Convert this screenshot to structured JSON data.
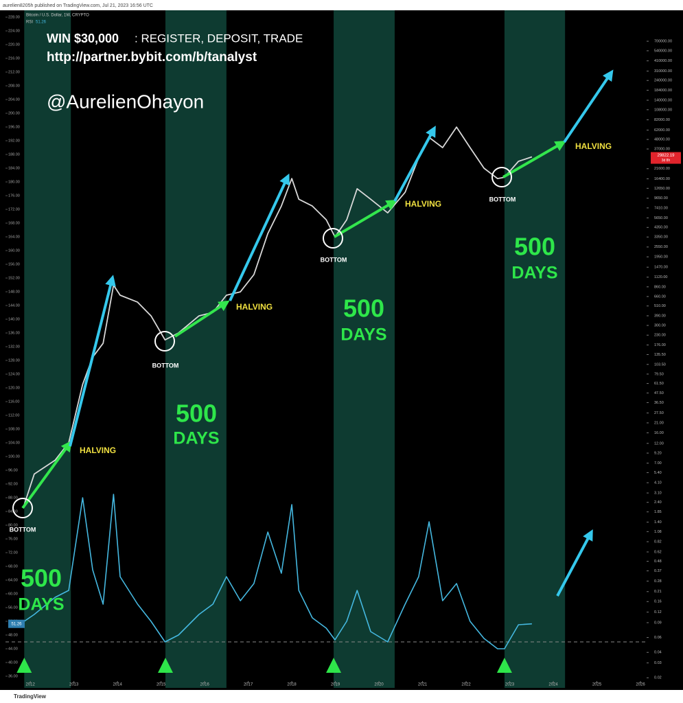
{
  "chart_data": {
    "type": "line",
    "header": "aurelien8205h published on TradingView.com, Jul 21, 2023 16:56 UTC",
    "symbol": "Bitcoin / U.S. Dollar, 1W, CRYPTO",
    "indicator": "RSI",
    "countdown": "3d 8h",
    "footer": "TradingView",
    "promo": {
      "win": "WIN $30,000",
      "action": ": REGISTER, DEPOSIT, TRADE",
      "url": "http://partner.bybit.com/b/tanalyst",
      "handle": "@AurelienOhayon"
    },
    "annotations": {
      "bottom": "BOTTOM",
      "halving": "HALVING",
      "days_number": "500",
      "days_label": "DAYS"
    },
    "x": [
      2011.86,
      2012.09,
      2012.57,
      2012.88,
      2013.2,
      2013.43,
      2013.67,
      2013.91,
      2014.06,
      2014.46,
      2014.77,
      2015.09,
      2015.4,
      2015.87,
      2016.19,
      2016.5,
      2016.82,
      2017.13,
      2017.45,
      2017.76,
      2018.0,
      2018.16,
      2018.47,
      2018.79,
      2018.99,
      2019.26,
      2019.5,
      2019.81,
      2020.2,
      2020.6,
      2020.91,
      2021.15,
      2021.46,
      2021.78,
      2022.09,
      2022.41,
      2022.72,
      2022.88,
      2023.2,
      2023.51
    ],
    "series": [
      {
        "name": "Bitcoin / U.S. Dollar",
        "color": "#d9d9d9",
        "axis": "y2",
        "values": [
          2.25,
          5.2,
          7.6,
          12.2,
          60,
          126,
          184,
          900,
          684,
          566,
          389,
          202,
          244,
          389,
          428,
          684,
          750,
          1200,
          3690,
          7800,
          16500,
          9400,
          7800,
          5360,
          3360,
          5360,
          12500,
          9400,
          6470,
          11350,
          29000,
          50800,
          38400,
          67300,
          38400,
          21900,
          16500,
          17100,
          26400,
          29822.19
        ]
      },
      {
        "name": "RSI",
        "color": "#45b8e0",
        "values": [
          52,
          54,
          59,
          61,
          88,
          67,
          57,
          89,
          65,
          57,
          52,
          46,
          48,
          54,
          57,
          65,
          58,
          63,
          78,
          66,
          86,
          61,
          53,
          50,
          46.6,
          52,
          61,
          49,
          46,
          57,
          65,
          81,
          58,
          63,
          52,
          47,
          44,
          44,
          51,
          51.26
        ]
      }
    ],
    "level": 46,
    "bands": [
      [
        2011.86,
        2012.93
      ],
      [
        2015.1,
        2016.5
      ],
      [
        2018.96,
        2020.36
      ],
      [
        2022.88,
        2024.27
      ]
    ],
    "band_color": "#0e3b31",
    "xlim": [
      2011.43,
      2026.11
    ],
    "xticks": [
      2012,
      2013,
      2014,
      2015,
      2016,
      2017,
      2018,
      2019,
      2020,
      2021,
      2022,
      2023,
      2024,
      2025,
      2026
    ],
    "ylim": [
      35,
      229.4
    ],
    "yticks": [
      {
        "value": 36,
        "label": "36.00"
      },
      {
        "value": 40,
        "label": "40.00"
      },
      {
        "value": 44,
        "label": "44.00"
      },
      {
        "value": 48,
        "label": "48.00"
      },
      {
        "value": 52,
        "label": "52.00"
      },
      {
        "value": 56,
        "label": "56.00"
      },
      {
        "value": 60,
        "label": "60.00"
      },
      {
        "value": 64,
        "label": "64.00"
      },
      {
        "value": 68,
        "label": "68.00"
      },
      {
        "value": 72,
        "label": "72.00"
      },
      {
        "value": 76,
        "label": "76.00"
      },
      {
        "value": 80,
        "label": "80.00"
      },
      {
        "value": 84,
        "label": "84.00"
      },
      {
        "value": 88,
        "label": "88.00"
      },
      {
        "value": 92,
        "label": "92.00"
      },
      {
        "value": 96,
        "label": "96.00"
      },
      {
        "value": 100,
        "label": "100.00"
      },
      {
        "value": 104,
        "label": "104.00"
      },
      {
        "value": 108,
        "label": "108.00"
      },
      {
        "value": 112,
        "label": "112.00"
      },
      {
        "value": 116,
        "label": "116.00"
      },
      {
        "value": 120,
        "label": "120.00"
      },
      {
        "value": 124,
        "label": "124.00"
      },
      {
        "value": 128,
        "label": "128.00"
      },
      {
        "value": 132,
        "label": "132.00"
      },
      {
        "value": 136,
        "label": "136.00"
      },
      {
        "value": 140,
        "label": "140.00"
      },
      {
        "value": 144,
        "label": "144.00"
      },
      {
        "value": 148,
        "label": "148.00"
      },
      {
        "value": 152,
        "label": "152.00"
      },
      {
        "value": 156,
        "label": "156.00"
      },
      {
        "value": 160,
        "label": "160.00"
      },
      {
        "value": 164,
        "label": "164.00"
      },
      {
        "value": 168,
        "label": "168.00"
      },
      {
        "value": 172,
        "label": "172.00"
      },
      {
        "value": 176,
        "label": "176.00"
      },
      {
        "value": 180,
        "label": "180.00"
      },
      {
        "value": 184,
        "label": "184.00"
      },
      {
        "value": 188,
        "label": "188.00"
      },
      {
        "value": 192,
        "label": "192.00"
      },
      {
        "value": 196,
        "label": "196.00"
      },
      {
        "value": 200,
        "label": "200.00"
      },
      {
        "value": 204,
        "label": "204.00"
      },
      {
        "value": 208,
        "label": "208.00"
      },
      {
        "value": 212,
        "label": "212.00"
      },
      {
        "value": 216,
        "label": "216.00"
      },
      {
        "value": 220,
        "label": "220.00"
      },
      {
        "value": 224,
        "label": "224.00"
      },
      {
        "value": 228,
        "label": "228.00"
      }
    ],
    "y2log": true,
    "y2lim": [
      0.019,
      1540000
    ],
    "y2ticks": [
      {
        "value": 700000,
        "label": "700000.00"
      },
      {
        "value": 540000,
        "label": "540000.00"
      },
      {
        "value": 410000,
        "label": "410000.00"
      },
      {
        "value": 310000,
        "label": "310000.00"
      },
      {
        "value": 240000,
        "label": "240000.00"
      },
      {
        "value": 184000,
        "label": "184000.00"
      },
      {
        "value": 140000,
        "label": "140000.00"
      },
      {
        "value": 108000,
        "label": "108000.00"
      },
      {
        "value": 82000,
        "label": "82000.00"
      },
      {
        "value": 62000,
        "label": "62000.00"
      },
      {
        "value": 48000,
        "label": "48000.00"
      },
      {
        "value": 37000,
        "label": "37000.00"
      },
      {
        "value": 21600,
        "label": "21600.00"
      },
      {
        "value": 16400,
        "label": "16400.00"
      },
      {
        "value": 12650,
        "label": "12650.00"
      },
      {
        "value": 9650,
        "label": "9650.00"
      },
      {
        "value": 7410,
        "label": "7410.00"
      },
      {
        "value": 5650,
        "label": "5650.00"
      },
      {
        "value": 4350,
        "label": "4350.00"
      },
      {
        "value": 3350,
        "label": "3350.00"
      },
      {
        "value": 2550,
        "label": "2550.00"
      },
      {
        "value": 1950,
        "label": "1950.00"
      },
      {
        "value": 1470,
        "label": "1470.00"
      },
      {
        "value": 1120,
        "label": "1120.00"
      },
      {
        "value": 860,
        "label": "860.00"
      },
      {
        "value": 660,
        "label": "660.00"
      },
      {
        "value": 510,
        "label": "510.00"
      },
      {
        "value": 390,
        "label": "390.00"
      },
      {
        "value": 300,
        "label": "300.00"
      },
      {
        "value": 230,
        "label": "230.00"
      },
      {
        "value": 176,
        "label": "176.00"
      },
      {
        "value": 135.5,
        "label": "135.50"
      },
      {
        "value": 103.5,
        "label": "103.50"
      },
      {
        "value": 79.5,
        "label": "79.50"
      },
      {
        "value": 61.5,
        "label": "61.50"
      },
      {
        "value": 47.5,
        "label": "47.50"
      },
      {
        "value": 36.5,
        "label": "36.50"
      },
      {
        "value": 27.5,
        "label": "27.50"
      },
      {
        "value": 21,
        "label": "21.00"
      },
      {
        "value": 16,
        "label": "16.00"
      },
      {
        "value": 12,
        "label": "12.00"
      },
      {
        "value": 9.2,
        "label": "9.20"
      },
      {
        "value": 7,
        "label": "7.00"
      },
      {
        "value": 5.4,
        "label": "5.40"
      },
      {
        "value": 4.1,
        "label": "4.10"
      },
      {
        "value": 3.1,
        "label": "3.10"
      },
      {
        "value": 2.4,
        "label": "2.40"
      },
      {
        "value": 1.85,
        "label": "1.85"
      },
      {
        "value": 1.4,
        "label": "1.40"
      },
      {
        "value": 1.08,
        "label": "1.08"
      },
      {
        "value": 0.82,
        "label": "0.82"
      },
      {
        "value": 0.62,
        "label": "0.62"
      },
      {
        "value": 0.48,
        "label": "0.48"
      },
      {
        "value": 0.37,
        "label": "0.37"
      },
      {
        "value": 0.28,
        "label": "0.28"
      },
      {
        "value": 0.21,
        "label": "0.21"
      },
      {
        "value": 0.16,
        "label": "0.16"
      },
      {
        "value": 0.12,
        "label": "0.12"
      },
      {
        "value": 0.09,
        "label": "0.09"
      },
      {
        "value": 0.06,
        "label": "0.06"
      },
      {
        "value": 0.04,
        "label": "0.04"
      },
      {
        "value": 0.03,
        "label": "0.03"
      },
      {
        "value": 0.02,
        "label": "0.02"
      }
    ]
  }
}
